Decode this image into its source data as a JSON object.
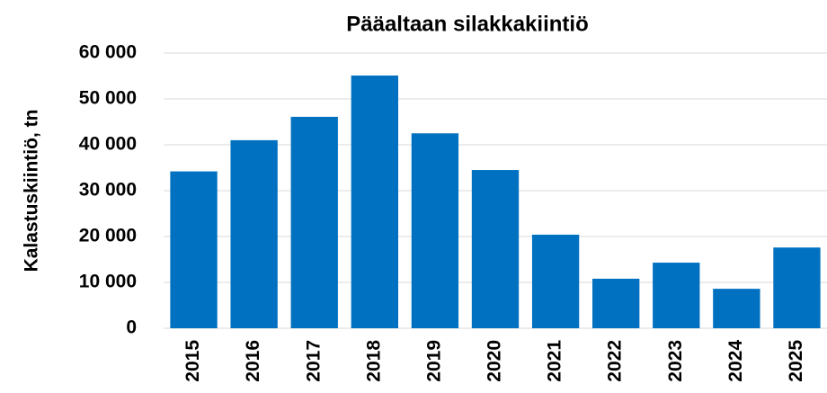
{
  "chart_data": {
    "type": "bar",
    "title": "Pääaltaan silakkakiintiö",
    "y_label": "Kalastuskiintiö, tn",
    "categories": [
      "2015",
      "2016",
      "2017",
      "2018",
      "2019",
      "2020",
      "2021",
      "2022",
      "2023",
      "2024",
      "2025"
    ],
    "values": [
      34200,
      41000,
      46100,
      55100,
      42500,
      34500,
      20400,
      10800,
      14300,
      8600,
      17600
    ],
    "color": "#0070c0",
    "ylim": [
      0,
      60000
    ],
    "yticks": [
      0,
      {
        "value": 10000,
        "label": "10 000"
      },
      {
        "value": 20000,
        "label": "20 000"
      },
      {
        "value": 30000,
        "label": "30 000"
      },
      {
        "value": 40000,
        "label": "40 000"
      },
      {
        "value": 50000,
        "label": "50 000"
      },
      {
        "value": 60000,
        "label": "60 000"
      }
    ],
    "grid": true
  }
}
